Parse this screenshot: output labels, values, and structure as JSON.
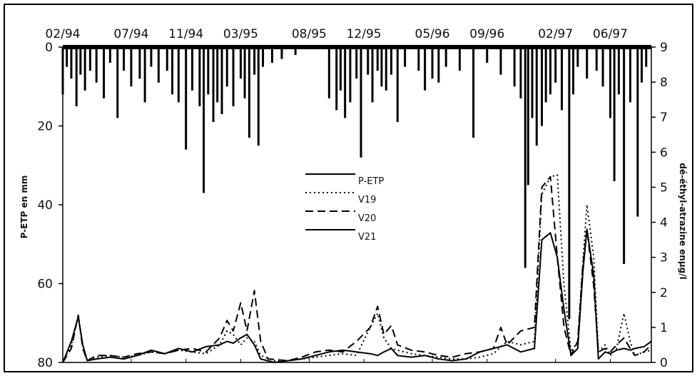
{
  "chart_data": {
    "type": "line",
    "xlabel": "",
    "ylabel_left": "P-ETP en mm",
    "ylabel_right": "dé-éthyl-atrazine enµg/l",
    "x_tick_labels": [
      "02/94",
      "07/94",
      "11/94",
      "03/95",
      "08/95",
      "12/95",
      "05/96",
      "09/96",
      "02/97",
      "06/97"
    ],
    "x_range_months": [
      "1994-02",
      "1997-09"
    ],
    "y_left_ticks": [
      "0",
      "20",
      "40",
      "60",
      "80"
    ],
    "y_left_range": [
      0,
      80
    ],
    "y_left_inverted": true,
    "y_right_ticks": [
      "0",
      "1",
      "2",
      "3",
      "4",
      "5",
      "6",
      "7",
      "8",
      "9"
    ],
    "y_right_range": [
      0,
      9
    ],
    "legend_position": "center",
    "series": [
      {
        "name": "P-ETP",
        "style": "bars-from-top",
        "axis": "left",
        "color": "#000000",
        "points": [
          [
            "1994-02-01",
            12
          ],
          [
            "1994-02-10",
            5
          ],
          [
            "1994-02-20",
            8
          ],
          [
            "1994-03-01",
            15
          ],
          [
            "1994-03-10",
            7
          ],
          [
            "1994-03-20",
            11
          ],
          [
            "1994-04-01",
            6
          ],
          [
            "1994-04-15",
            9
          ],
          [
            "1994-05-01",
            13
          ],
          [
            "1994-05-15",
            4
          ],
          [
            "1994-06-01",
            18
          ],
          [
            "1994-06-15",
            6
          ],
          [
            "1994-07-01",
            10
          ],
          [
            "1994-07-20",
            8
          ],
          [
            "1994-08-01",
            14
          ],
          [
            "1994-08-15",
            5
          ],
          [
            "1994-09-01",
            9
          ],
          [
            "1994-09-20",
            6
          ],
          [
            "1994-10-01",
            12
          ],
          [
            "1994-10-15",
            14
          ],
          [
            "1994-11-01",
            26
          ],
          [
            "1994-11-15",
            11
          ],
          [
            "1994-12-01",
            15
          ],
          [
            "1994-12-10",
            37
          ],
          [
            "1994-12-20",
            12
          ],
          [
            "1995-01-01",
            19
          ],
          [
            "1995-01-10",
            14
          ],
          [
            "1995-01-20",
            17
          ],
          [
            "1995-02-01",
            10
          ],
          [
            "1995-02-15",
            15
          ],
          [
            "1995-03-01",
            8
          ],
          [
            "1995-03-10",
            13
          ],
          [
            "1995-03-20",
            23
          ],
          [
            "1995-04-01",
            7
          ],
          [
            "1995-04-10",
            25
          ],
          [
            "1995-04-20",
            5
          ],
          [
            "1995-05-10",
            4
          ],
          [
            "1995-06-01",
            3
          ],
          [
            "1995-07-01",
            2
          ],
          [
            "1995-09-15",
            13
          ],
          [
            "1995-10-01",
            16
          ],
          [
            "1995-10-10",
            11
          ],
          [
            "1995-10-20",
            18
          ],
          [
            "1995-11-01",
            14
          ],
          [
            "1995-11-15",
            8
          ],
          [
            "1995-11-25",
            28
          ],
          [
            "1995-12-10",
            7
          ],
          [
            "1995-12-20",
            14
          ],
          [
            "1996-01-01",
            6
          ],
          [
            "1996-01-10",
            10
          ],
          [
            "1996-01-20",
            11
          ],
          [
            "1996-02-01",
            7
          ],
          [
            "1996-02-15",
            19
          ],
          [
            "1996-03-01",
            5
          ],
          [
            "1996-04-01",
            6
          ],
          [
            "1996-04-15",
            11
          ],
          [
            "1996-05-01",
            8
          ],
          [
            "1996-05-15",
            9
          ],
          [
            "1996-06-01",
            5
          ],
          [
            "1996-07-01",
            6
          ],
          [
            "1996-08-01",
            23
          ],
          [
            "1996-09-01",
            4
          ],
          [
            "1996-10-01",
            7
          ],
          [
            "1996-11-01",
            10
          ],
          [
            "1996-11-15",
            13
          ],
          [
            "1996-11-25",
            56
          ],
          [
            "1996-12-01",
            35
          ],
          [
            "1996-12-10",
            18
          ],
          [
            "1996-12-20",
            25
          ],
          [
            "1997-01-01",
            20
          ],
          [
            "1997-01-10",
            14
          ],
          [
            "1997-01-20",
            12
          ],
          [
            "1997-02-01",
            9
          ],
          [
            "1997-02-15",
            16
          ],
          [
            "1997-03-01",
            69
          ],
          [
            "1997-03-10",
            12
          ],
          [
            "1997-03-20",
            5
          ],
          [
            "1997-04-10",
            8
          ],
          [
            "1997-05-01",
            6
          ],
          [
            "1997-05-15",
            10
          ],
          [
            "1997-06-01",
            18
          ],
          [
            "1997-06-10",
            34
          ],
          [
            "1997-06-20",
            12
          ],
          [
            "1997-07-01",
            55
          ],
          [
            "1997-07-15",
            14
          ],
          [
            "1997-08-01",
            43
          ],
          [
            "1997-08-10",
            9
          ],
          [
            "1997-08-20",
            5
          ]
        ]
      },
      {
        "name": "V19",
        "style": "dotted",
        "axis": "right",
        "color": "#000000",
        "points": [
          [
            "1994-02-01",
            0
          ],
          [
            "1994-02-20",
            0.5
          ],
          [
            "1994-03-05",
            1.35
          ],
          [
            "1994-03-15",
            0.5
          ],
          [
            "1994-03-25",
            0.05
          ],
          [
            "1994-04-15",
            0.15
          ],
          [
            "1994-05-15",
            0.2
          ],
          [
            "1994-06-15",
            0.15
          ],
          [
            "1994-07-15",
            0.2
          ],
          [
            "1994-08-15",
            0.3
          ],
          [
            "1994-09-15",
            0.25
          ],
          [
            "1994-10-15",
            0.35
          ],
          [
            "1994-11-15",
            0.3
          ],
          [
            "1994-12-15",
            0.25
          ],
          [
            "1995-01-15",
            0.5
          ],
          [
            "1995-02-01",
            0.9
          ],
          [
            "1995-02-15",
            0.8
          ],
          [
            "1995-03-01",
            0.5
          ],
          [
            "1995-03-15",
            0.7
          ],
          [
            "1995-04-01",
            0.6
          ],
          [
            "1995-04-15",
            0.2
          ],
          [
            "1995-05-15",
            0.05
          ],
          [
            "1995-06-15",
            0.05
          ],
          [
            "1995-07-15",
            0.1
          ],
          [
            "1995-08-15",
            0.15
          ],
          [
            "1995-09-15",
            0.2
          ],
          [
            "1995-10-15",
            0.25
          ],
          [
            "1995-11-15",
            0.2
          ],
          [
            "1995-12-15",
            1.0
          ],
          [
            "1996-01-01",
            1.4
          ],
          [
            "1996-01-15",
            0.7
          ],
          [
            "1996-02-01",
            0.4
          ],
          [
            "1996-02-15",
            0.35
          ],
          [
            "1996-03-15",
            0.25
          ],
          [
            "1996-04-15",
            0.2
          ],
          [
            "1996-05-15",
            0.15
          ],
          [
            "1996-06-15",
            0.1
          ],
          [
            "1996-07-15",
            0.1
          ],
          [
            "1996-08-15",
            0.15
          ],
          [
            "1996-09-15",
            0.25
          ],
          [
            "1996-10-15",
            0.6
          ],
          [
            "1996-11-15",
            0.5
          ],
          [
            "1996-12-15",
            0.6
          ],
          [
            "1997-01-01",
            4.8
          ],
          [
            "1997-01-20",
            5.3
          ],
          [
            "1997-02-05",
            5.35
          ],
          [
            "1997-02-20",
            2.2
          ],
          [
            "1997-03-05",
            0.3
          ],
          [
            "1997-03-20",
            0.6
          ],
          [
            "1997-04-01",
            2.9
          ],
          [
            "1997-04-10",
            4.5
          ],
          [
            "1997-04-25",
            3.0
          ],
          [
            "1997-05-05",
            0.3
          ],
          [
            "1997-05-20",
            0.5
          ],
          [
            "1997-06-01",
            0.2
          ],
          [
            "1997-06-15",
            0.4
          ],
          [
            "1997-07-01",
            1.4
          ],
          [
            "1997-07-15",
            0.6
          ],
          [
            "1997-07-25",
            0.2
          ],
          [
            "1997-08-15",
            0.3
          ],
          [
            "1997-09-01",
            0.35
          ]
        ]
      },
      {
        "name": "V20",
        "style": "dashed",
        "axis": "right",
        "color": "#000000",
        "points": [
          [
            "1994-02-01",
            0
          ],
          [
            "1994-02-20",
            0.4
          ],
          [
            "1994-03-05",
            1.35
          ],
          [
            "1994-03-15",
            0.4
          ],
          [
            "1994-03-25",
            0.05
          ],
          [
            "1994-04-15",
            0.2
          ],
          [
            "1994-05-15",
            0.2
          ],
          [
            "1994-06-15",
            0.15
          ],
          [
            "1994-07-15",
            0.25
          ],
          [
            "1994-08-15",
            0.3
          ],
          [
            "1994-09-15",
            0.25
          ],
          [
            "1994-10-15",
            0.35
          ],
          [
            "1994-11-15",
            0.4
          ],
          [
            "1994-12-15",
            0.3
          ],
          [
            "1995-01-15",
            0.7
          ],
          [
            "1995-02-01",
            1.2
          ],
          [
            "1995-02-15",
            0.9
          ],
          [
            "1995-03-01",
            1.7
          ],
          [
            "1995-03-15",
            0.9
          ],
          [
            "1995-04-01",
            2.05
          ],
          [
            "1995-04-15",
            0.6
          ],
          [
            "1995-05-01",
            0.1
          ],
          [
            "1995-06-15",
            0.05
          ],
          [
            "1995-07-15",
            0.15
          ],
          [
            "1995-08-15",
            0.3
          ],
          [
            "1995-09-15",
            0.35
          ],
          [
            "1995-10-15",
            0.3
          ],
          [
            "1995-11-15",
            0.6
          ],
          [
            "1995-12-15",
            1.0
          ],
          [
            "1996-01-01",
            1.6
          ],
          [
            "1996-01-15",
            0.8
          ],
          [
            "1996-02-01",
            1.05
          ],
          [
            "1996-02-15",
            0.5
          ],
          [
            "1996-03-15",
            0.35
          ],
          [
            "1996-04-15",
            0.3
          ],
          [
            "1996-05-15",
            0.2
          ],
          [
            "1996-06-15",
            0.15
          ],
          [
            "1996-07-15",
            0.25
          ],
          [
            "1996-08-15",
            0.3
          ],
          [
            "1996-09-15",
            0.4
          ],
          [
            "1996-10-01",
            1.0
          ],
          [
            "1996-10-15",
            0.5
          ],
          [
            "1996-11-15",
            0.9
          ],
          [
            "1996-12-15",
            1.0
          ],
          [
            "1997-01-01",
            5.0
          ],
          [
            "1997-01-20",
            5.3
          ],
          [
            "1997-02-05",
            3.0
          ],
          [
            "1997-02-20",
            1.0
          ],
          [
            "1997-03-05",
            0.2
          ],
          [
            "1997-03-20",
            0.6
          ],
          [
            "1997-04-01",
            2.8
          ],
          [
            "1997-04-10",
            3.8
          ],
          [
            "1997-04-25",
            2.2
          ],
          [
            "1997-05-05",
            0.3
          ],
          [
            "1997-05-20",
            0.4
          ],
          [
            "1997-06-01",
            0.3
          ],
          [
            "1997-06-15",
            0.5
          ],
          [
            "1997-07-01",
            0.7
          ],
          [
            "1997-07-15",
            0.4
          ],
          [
            "1997-07-25",
            0.2
          ],
          [
            "1997-08-15",
            0.3
          ],
          [
            "1997-09-01",
            0.5
          ]
        ]
      },
      {
        "name": "V21",
        "style": "solid",
        "axis": "right",
        "color": "#000000",
        "points": [
          [
            "1994-02-01",
            0
          ],
          [
            "1994-02-20",
            0.6
          ],
          [
            "1994-03-05",
            1.3
          ],
          [
            "1994-03-15",
            0.5
          ],
          [
            "1994-03-25",
            0.05
          ],
          [
            "1994-04-15",
            0.1
          ],
          [
            "1994-05-15",
            0.15
          ],
          [
            "1994-06-15",
            0.1
          ],
          [
            "1994-07-15",
            0.2
          ],
          [
            "1994-08-15",
            0.35
          ],
          [
            "1994-09-15",
            0.25
          ],
          [
            "1994-10-15",
            0.4
          ],
          [
            "1994-11-15",
            0.3
          ],
          [
            "1994-12-15",
            0.45
          ],
          [
            "1995-01-15",
            0.5
          ],
          [
            "1995-02-01",
            0.6
          ],
          [
            "1995-02-15",
            0.55
          ],
          [
            "1995-03-01",
            0.7
          ],
          [
            "1995-03-15",
            0.8
          ],
          [
            "1995-04-01",
            0.5
          ],
          [
            "1995-04-15",
            0.1
          ],
          [
            "1995-05-15",
            0.0
          ],
          [
            "1995-06-15",
            0.05
          ],
          [
            "1995-07-15",
            0.1
          ],
          [
            "1995-08-15",
            0.2
          ],
          [
            "1995-09-15",
            0.3
          ],
          [
            "1995-10-15",
            0.35
          ],
          [
            "1995-11-15",
            0.3
          ],
          [
            "1995-12-15",
            0.25
          ],
          [
            "1996-01-01",
            0.2
          ],
          [
            "1996-01-15",
            0.3
          ],
          [
            "1996-02-01",
            0.4
          ],
          [
            "1996-02-15",
            0.2
          ],
          [
            "1996-03-15",
            0.15
          ],
          [
            "1996-04-15",
            0.2
          ],
          [
            "1996-05-15",
            0.1
          ],
          [
            "1996-06-15",
            0.05
          ],
          [
            "1996-07-15",
            0.1
          ],
          [
            "1996-08-15",
            0.3
          ],
          [
            "1996-09-15",
            0.4
          ],
          [
            "1996-10-15",
            0.5
          ],
          [
            "1996-11-15",
            0.3
          ],
          [
            "1996-12-15",
            0.4
          ],
          [
            "1997-01-01",
            3.5
          ],
          [
            "1997-01-20",
            3.7
          ],
          [
            "1997-02-05",
            3.0
          ],
          [
            "1997-02-20",
            1.5
          ],
          [
            "1997-03-05",
            0.2
          ],
          [
            "1997-03-20",
            0.4
          ],
          [
            "1997-04-01",
            2.6
          ],
          [
            "1997-04-10",
            3.8
          ],
          [
            "1997-04-25",
            2.5
          ],
          [
            "1997-05-05",
            0.1
          ],
          [
            "1997-05-20",
            0.3
          ],
          [
            "1997-06-01",
            0.25
          ],
          [
            "1997-06-15",
            0.35
          ],
          [
            "1997-07-01",
            0.4
          ],
          [
            "1997-07-15",
            0.35
          ],
          [
            "1997-07-25",
            0.4
          ],
          [
            "1997-08-15",
            0.45
          ],
          [
            "1997-09-01",
            0.6
          ]
        ]
      }
    ]
  }
}
